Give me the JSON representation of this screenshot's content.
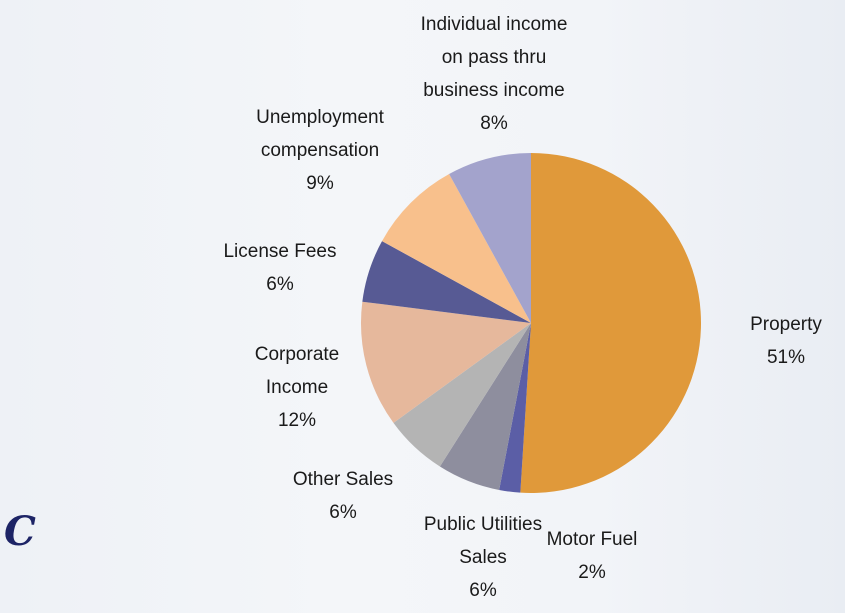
{
  "chart_data": {
    "type": "pie",
    "categories": [
      "Property",
      "Motor Fuel",
      "Public Utilities Sales",
      "Other Sales",
      "Corporate Income",
      "License Fees",
      "Unemployment compensation",
      "Individual income on pass thru business income"
    ],
    "values": [
      51,
      2,
      6,
      6,
      12,
      6,
      9,
      8
    ],
    "value_labels": [
      "51%",
      "2%",
      "6%",
      "6%",
      "12%",
      "6%",
      "9%",
      "8%"
    ],
    "colors": [
      "#e0993a",
      "#5b5ea6",
      "#8e8e9e",
      "#b4b4b4",
      "#e6b89c",
      "#575a94",
      "#f8c08c",
      "#a3a3cc"
    ],
    "annotations": [
      "C"
    ]
  }
}
